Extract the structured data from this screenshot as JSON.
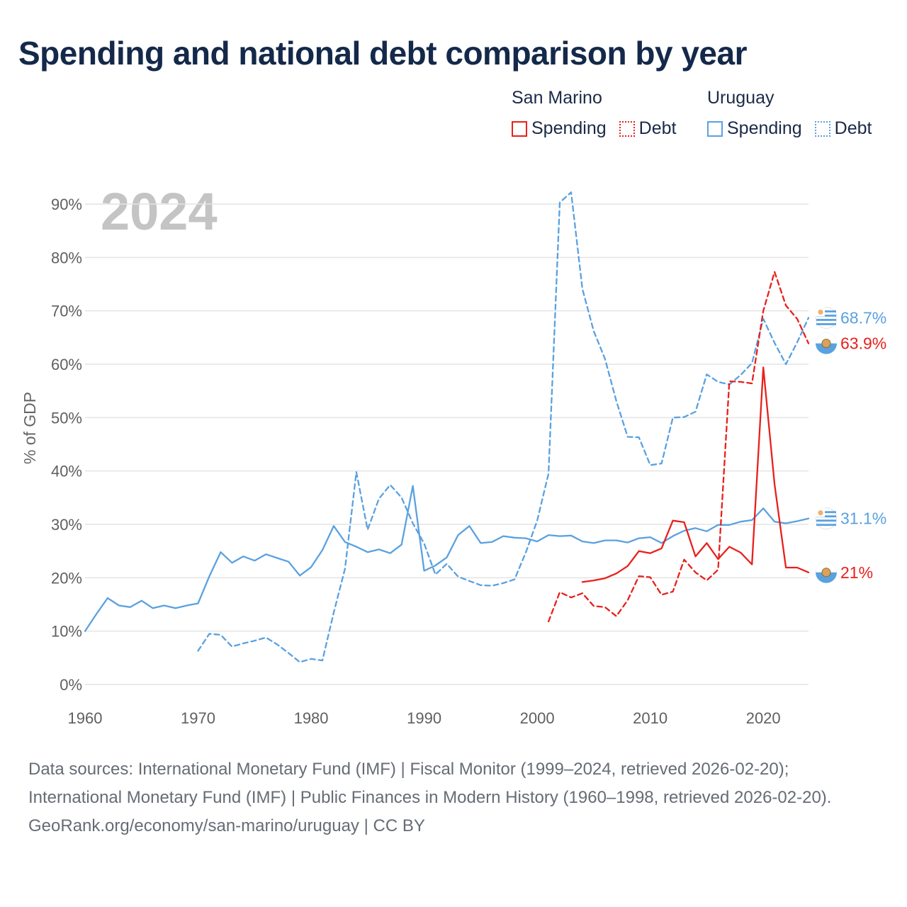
{
  "title": "Spending and national debt comparison by year",
  "legend": {
    "groups": [
      {
        "name": "San Marino",
        "color": "#e8201c",
        "items": [
          {
            "label": "Spending",
            "style": "solid"
          },
          {
            "label": "Debt",
            "style": "dotted"
          }
        ]
      },
      {
        "name": "Uruguay",
        "color": "#5aa1e0",
        "items": [
          {
            "label": "Spending",
            "style": "solid"
          },
          {
            "label": "Debt",
            "style": "dotted"
          }
        ]
      }
    ]
  },
  "year_watermark": "2024",
  "footer": {
    "sources": "Data sources: International Monetary Fund (IMF) | Fiscal Monitor (1999–2024, retrieved 2026-02-20); International Monetary Fund (IMF) | Public Finances in Modern History (1960–1998, retrieved 2026-02-20).",
    "url": "GeoRank.org/economy/san-marino/uruguay | CC BY"
  },
  "chart_data": {
    "type": "line",
    "ylabel": "% of GDP",
    "xlabel": "",
    "xlim": [
      1960,
      2024
    ],
    "ylim": [
      0,
      90
    ],
    "x_ticks": [
      1960,
      1970,
      1980,
      1990,
      2000,
      2010,
      2020
    ],
    "y_ticks": [
      {
        "value": 0,
        "label": "0%"
      },
      {
        "value": 10,
        "label": "10%"
      },
      {
        "value": 20,
        "label": "20%"
      },
      {
        "value": 30,
        "label": "30%"
      },
      {
        "value": 40,
        "label": "40%"
      },
      {
        "value": 50,
        "label": "50%"
      },
      {
        "value": 60,
        "label": "60%"
      },
      {
        "value": 70,
        "label": "70%"
      },
      {
        "value": 80,
        "label": "80%"
      },
      {
        "value": 90,
        "label": "90%"
      }
    ],
    "series": [
      {
        "name": "Uruguay Spending",
        "country": "Uruguay",
        "metric": "Spending",
        "color": "#5aa1e0",
        "dashed": false,
        "end_label": "31.1%",
        "points": [
          [
            1960,
            10.0
          ],
          [
            1961,
            13.2
          ],
          [
            1962,
            16.2
          ],
          [
            1963,
            14.8
          ],
          [
            1964,
            14.5
          ],
          [
            1965,
            15.7
          ],
          [
            1966,
            14.3
          ],
          [
            1967,
            14.8
          ],
          [
            1968,
            14.3
          ],
          [
            1969,
            14.8
          ],
          [
            1970,
            15.2
          ],
          [
            1971,
            20.3
          ],
          [
            1972,
            24.8
          ],
          [
            1973,
            22.8
          ],
          [
            1974,
            24.0
          ],
          [
            1975,
            23.2
          ],
          [
            1976,
            24.4
          ],
          [
            1977,
            23.7
          ],
          [
            1978,
            23.0
          ],
          [
            1979,
            20.4
          ],
          [
            1980,
            22.0
          ],
          [
            1981,
            25.2
          ],
          [
            1982,
            29.7
          ],
          [
            1983,
            26.7
          ],
          [
            1984,
            25.8
          ],
          [
            1985,
            24.8
          ],
          [
            1986,
            25.3
          ],
          [
            1987,
            24.6
          ],
          [
            1988,
            26.2
          ],
          [
            1989,
            37.2
          ],
          [
            1990,
            21.3
          ],
          [
            1991,
            22.3
          ],
          [
            1992,
            23.8
          ],
          [
            1993,
            28.0
          ],
          [
            1994,
            29.7
          ],
          [
            1995,
            26.5
          ],
          [
            1996,
            26.7
          ],
          [
            1997,
            27.8
          ],
          [
            1998,
            27.5
          ],
          [
            1999,
            27.4
          ],
          [
            2000,
            26.8
          ],
          [
            2001,
            28.0
          ],
          [
            2002,
            27.8
          ],
          [
            2003,
            27.9
          ],
          [
            2004,
            26.8
          ],
          [
            2005,
            26.5
          ],
          [
            2006,
            27.0
          ],
          [
            2007,
            27.0
          ],
          [
            2008,
            26.6
          ],
          [
            2009,
            27.4
          ],
          [
            2010,
            27.6
          ],
          [
            2011,
            26.5
          ],
          [
            2012,
            27.8
          ],
          [
            2013,
            28.8
          ],
          [
            2014,
            29.3
          ],
          [
            2015,
            28.7
          ],
          [
            2016,
            29.9
          ],
          [
            2017,
            29.9
          ],
          [
            2018,
            30.5
          ],
          [
            2019,
            30.8
          ],
          [
            2020,
            33.0
          ],
          [
            2021,
            30.5
          ],
          [
            2022,
            30.2
          ],
          [
            2023,
            30.6
          ],
          [
            2024,
            31.1
          ]
        ]
      },
      {
        "name": "Uruguay Debt",
        "country": "Uruguay",
        "metric": "Debt",
        "color": "#5aa1e0",
        "dashed": true,
        "end_label": "68.7%",
        "points": [
          [
            1970,
            6.3
          ],
          [
            1971,
            9.5
          ],
          [
            1972,
            9.3
          ],
          [
            1973,
            7.1
          ],
          [
            1974,
            7.7
          ],
          [
            1975,
            8.2
          ],
          [
            1976,
            8.8
          ],
          [
            1977,
            7.5
          ],
          [
            1978,
            5.9
          ],
          [
            1979,
            4.2
          ],
          [
            1980,
            4.8
          ],
          [
            1981,
            4.5
          ],
          [
            1982,
            13.5
          ],
          [
            1983,
            21.7
          ],
          [
            1984,
            39.8
          ],
          [
            1985,
            29.0
          ],
          [
            1986,
            34.8
          ],
          [
            1987,
            37.4
          ],
          [
            1988,
            35.0
          ],
          [
            1989,
            30.2
          ],
          [
            1990,
            26.4
          ],
          [
            1991,
            20.6
          ],
          [
            1992,
            22.6
          ],
          [
            1993,
            20.2
          ],
          [
            1994,
            19.4
          ],
          [
            1995,
            18.6
          ],
          [
            1996,
            18.5
          ],
          [
            1997,
            19.0
          ],
          [
            1998,
            19.7
          ],
          [
            1999,
            24.8
          ],
          [
            2000,
            30.7
          ],
          [
            2001,
            39.5
          ],
          [
            2002,
            90.3
          ],
          [
            2003,
            92.2
          ],
          [
            2004,
            74.1
          ],
          [
            2005,
            66.2
          ],
          [
            2006,
            61.0
          ],
          [
            2007,
            53.1
          ],
          [
            2008,
            46.4
          ],
          [
            2009,
            46.3
          ],
          [
            2010,
            41.1
          ],
          [
            2011,
            41.4
          ],
          [
            2012,
            50.0
          ],
          [
            2013,
            50.1
          ],
          [
            2014,
            51.1
          ],
          [
            2015,
            58.1
          ],
          [
            2016,
            56.7
          ],
          [
            2017,
            56.2
          ],
          [
            2018,
            58.0
          ],
          [
            2019,
            60.2
          ],
          [
            2020,
            68.5
          ],
          [
            2021,
            64.0
          ],
          [
            2022,
            60.0
          ],
          [
            2023,
            64.1
          ],
          [
            2024,
            68.7
          ]
        ]
      },
      {
        "name": "San Marino Spending",
        "country": "San Marino",
        "metric": "Spending",
        "color": "#e8201c",
        "dashed": false,
        "end_label": "21%",
        "points": [
          [
            2004,
            19.2
          ],
          [
            2005,
            19.5
          ],
          [
            2006,
            19.9
          ],
          [
            2007,
            20.8
          ],
          [
            2008,
            22.2
          ],
          [
            2009,
            25.0
          ],
          [
            2010,
            24.6
          ],
          [
            2011,
            25.5
          ],
          [
            2012,
            30.7
          ],
          [
            2013,
            30.4
          ],
          [
            2014,
            24.0
          ],
          [
            2015,
            26.5
          ],
          [
            2016,
            23.5
          ],
          [
            2017,
            25.8
          ],
          [
            2018,
            24.7
          ],
          [
            2019,
            22.5
          ],
          [
            2020,
            59.4
          ],
          [
            2021,
            37.5
          ],
          [
            2022,
            21.9
          ],
          [
            2023,
            21.9
          ],
          [
            2024,
            21.0
          ]
        ]
      },
      {
        "name": "San Marino Debt",
        "country": "San Marino",
        "metric": "Debt",
        "color": "#e8201c",
        "dashed": true,
        "end_label": "63.9%",
        "points": [
          [
            2001,
            11.8
          ],
          [
            2002,
            17.3
          ],
          [
            2003,
            16.3
          ],
          [
            2004,
            17.1
          ],
          [
            2005,
            14.7
          ],
          [
            2006,
            14.5
          ],
          [
            2007,
            12.8
          ],
          [
            2008,
            15.8
          ],
          [
            2009,
            20.3
          ],
          [
            2010,
            20.1
          ],
          [
            2011,
            16.8
          ],
          [
            2012,
            17.4
          ],
          [
            2013,
            23.4
          ],
          [
            2014,
            21.0
          ],
          [
            2015,
            19.5
          ],
          [
            2016,
            21.5
          ],
          [
            2017,
            56.8
          ],
          [
            2018,
            56.7
          ],
          [
            2019,
            56.4
          ],
          [
            2020,
            70.0
          ],
          [
            2021,
            77.3
          ],
          [
            2022,
            71.0
          ],
          [
            2023,
            68.5
          ],
          [
            2024,
            63.9
          ]
        ]
      }
    ]
  }
}
